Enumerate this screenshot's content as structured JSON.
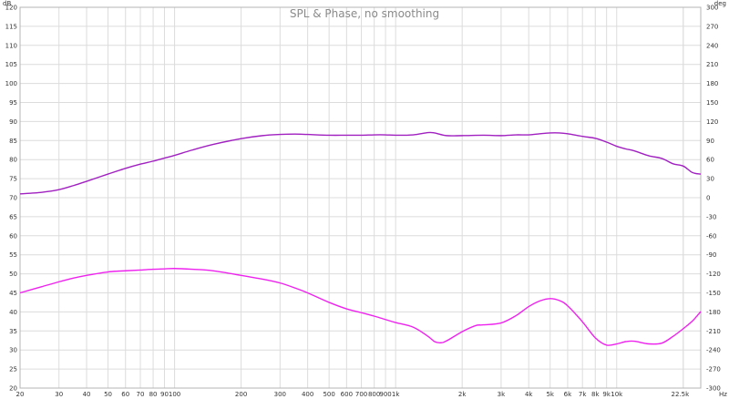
{
  "chart_data": {
    "type": "line",
    "title": "SPL & Phase, no smoothing",
    "x_scale": "log",
    "xlim": [
      20,
      24000
    ],
    "ylim_left": [
      20,
      120
    ],
    "ylim_right": [
      -300,
      300
    ],
    "y_left_unit": "dB",
    "y_right_unit": "deg",
    "x_unit": "Hz",
    "grid": true,
    "x_ticks": [
      {
        "v": 20,
        "label": "20"
      },
      {
        "v": 30,
        "label": "30"
      },
      {
        "v": 40,
        "label": "40"
      },
      {
        "v": 50,
        "label": "50"
      },
      {
        "v": 60,
        "label": "60"
      },
      {
        "v": 70,
        "label": "70"
      },
      {
        "v": 80,
        "label": "80"
      },
      {
        "v": 90,
        "label": "90"
      },
      {
        "v": 100,
        "label": "100"
      },
      {
        "v": 200,
        "label": "200"
      },
      {
        "v": 300,
        "label": "300"
      },
      {
        "v": 400,
        "label": "400"
      },
      {
        "v": 500,
        "label": "500"
      },
      {
        "v": 600,
        "label": "600"
      },
      {
        "v": 700,
        "label": "700"
      },
      {
        "v": 800,
        "label": "800"
      },
      {
        "v": 900,
        "label": "900"
      },
      {
        "v": 1000,
        "label": "1k"
      },
      {
        "v": 2000,
        "label": "2k"
      },
      {
        "v": 3000,
        "label": "3k"
      },
      {
        "v": 4000,
        "label": "4k"
      },
      {
        "v": 5000,
        "label": "5k"
      },
      {
        "v": 6000,
        "label": "6k"
      },
      {
        "v": 7000,
        "label": "7k"
      },
      {
        "v": 8000,
        "label": "8k"
      },
      {
        "v": 9000,
        "label": "9k"
      },
      {
        "v": 10000,
        "label": "10k"
      },
      {
        "v": 22500,
        "label": "22.5k"
      }
    ],
    "y_left_ticks": [
      20,
      25,
      30,
      35,
      40,
      45,
      50,
      55,
      60,
      65,
      70,
      75,
      80,
      85,
      90,
      95,
      100,
      105,
      110,
      115,
      120
    ],
    "y_right_ticks": [
      -300,
      -270,
      -240,
      -210,
      -180,
      -150,
      -120,
      -90,
      -60,
      -30,
      0,
      30,
      60,
      90,
      120,
      150,
      180,
      210,
      240,
      270,
      300
    ],
    "series": [
      {
        "color": "#a020c0",
        "axis": "left",
        "x": [
          20,
          25,
          30,
          35,
          40,
          50,
          60,
          70,
          80,
          90,
          100,
          120,
          150,
          200,
          250,
          300,
          350,
          400,
          500,
          600,
          700,
          800,
          900,
          1000,
          1200,
          1400,
          1500,
          1700,
          2000,
          2500,
          3000,
          3500,
          4000,
          4500,
          5000,
          5500,
          6000,
          7000,
          8000,
          9000,
          10000,
          11000,
          12000,
          14000,
          16000,
          18000,
          20000,
          22000,
          24000
        ],
        "y": [
          71,
          71.4,
          72.1,
          73.2,
          74.3,
          76.2,
          77.7,
          78.8,
          79.6,
          80.4,
          81.1,
          82.5,
          84,
          85.5,
          86.3,
          86.6,
          86.7,
          86.6,
          86.4,
          86.4,
          86.4,
          86.5,
          86.5,
          86.4,
          86.5,
          87.1,
          87,
          86.3,
          86.3,
          86.4,
          86.3,
          86.5,
          86.5,
          86.8,
          87,
          87,
          86.8,
          86.1,
          85.6,
          84.6,
          83.5,
          82.8,
          82.3,
          81,
          80.3,
          78.9,
          78.3,
          76.6,
          76.2
        ]
      },
      {
        "color": "#ee22ee",
        "axis": "left",
        "x": [
          20,
          25,
          30,
          35,
          40,
          50,
          60,
          70,
          80,
          90,
          100,
          120,
          150,
          200,
          250,
          300,
          350,
          400,
          500,
          600,
          700,
          800,
          900,
          1000,
          1200,
          1400,
          1500,
          1600,
          1700,
          2000,
          2300,
          2500,
          3000,
          3500,
          4000,
          4500,
          5000,
          5500,
          6000,
          7000,
          8000,
          9000,
          10000,
          11000,
          12000,
          14000,
          16000,
          18000,
          20000,
          22000,
          24000
        ],
        "y": [
          45,
          46.6,
          47.9,
          48.9,
          49.6,
          50.5,
          50.8,
          51,
          51.2,
          51.3,
          51.4,
          51.2,
          50.8,
          49.6,
          48.6,
          47.6,
          46.3,
          45,
          42.5,
          40.8,
          39.8,
          38.9,
          38,
          37.2,
          36,
          33.6,
          32.2,
          31.9,
          32.4,
          34.8,
          36.4,
          36.6,
          37.1,
          39,
          41.4,
          42.9,
          43.5,
          43,
          41.6,
          37.4,
          33.2,
          31.3,
          31.6,
          32.2,
          32.3,
          31.6,
          31.8,
          33.6,
          35.6,
          37.6,
          40.1
        ]
      }
    ]
  }
}
